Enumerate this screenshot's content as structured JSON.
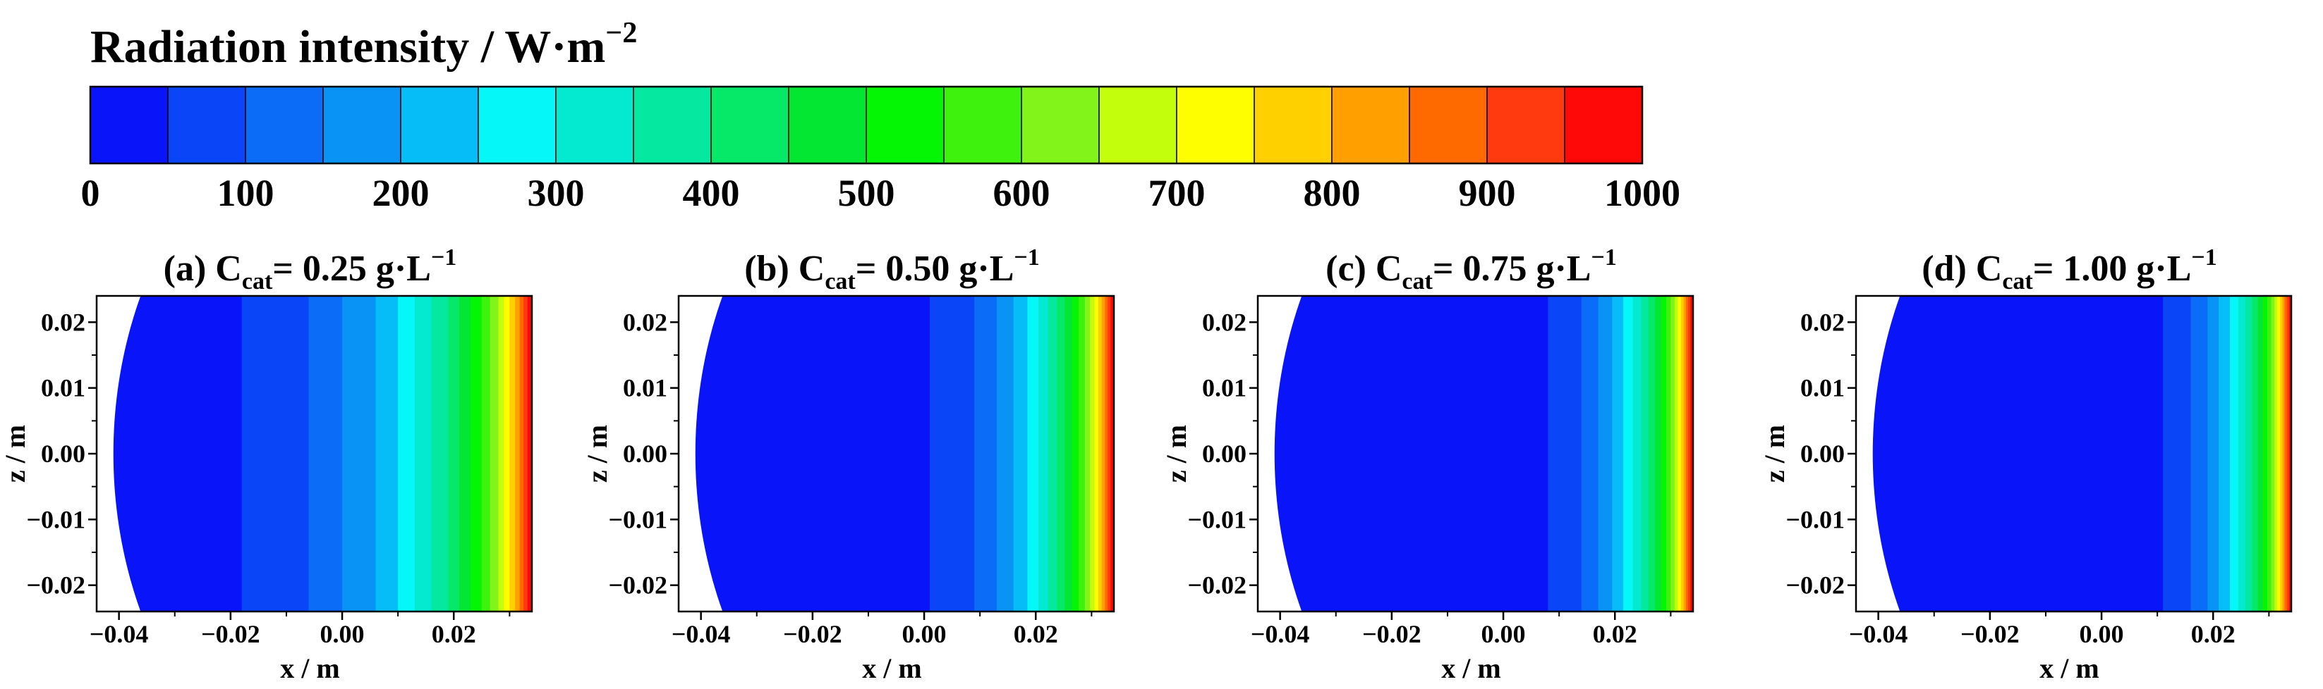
{
  "colorbar": {
    "title": "Radiation intensity / W·m",
    "title_sup": "−2",
    "ticks": [
      "0",
      "100",
      "200",
      "300",
      "400",
      "500",
      "600",
      "700",
      "800",
      "900",
      "1000"
    ],
    "colors": [
      "#0a14f8",
      "#0a46f8",
      "#0a6cf7",
      "#0893f5",
      "#06bdf8",
      "#05f7f8",
      "#03ead0",
      "#05e8a0",
      "#06e868",
      "#03e632",
      "#04f604",
      "#3ff20e",
      "#82f41a",
      "#c3fe0c",
      "#fefe00",
      "#fed000",
      "#ff9f00",
      "#ff6a00",
      "#ff3a0e",
      "#fe0808"
    ]
  },
  "chart_data": [
    {
      "type": "heatmap",
      "title": "(a) C",
      "title_sub": "cat",
      "title_rest": "= 0.25 g·L",
      "title_sup": "−1",
      "xlabel": "x / m",
      "ylabel": "z / m",
      "xticks": [
        "−0.04",
        "−0.02",
        "0.00",
        "0.02"
      ],
      "yticks": [
        "0.02",
        "0.01",
        "0.00",
        "−0.01",
        "−0.02"
      ],
      "xlim": [
        -0.044,
        0.034
      ],
      "ylim": [
        -0.024,
        0.024
      ],
      "bands": [
        {
          "x0": -0.044,
          "x1": -0.018,
          "v": 25
        },
        {
          "x0": -0.018,
          "x1": -0.006,
          "v": 75
        },
        {
          "x0": -0.006,
          "x1": 0.0,
          "v": 125
        },
        {
          "x0": 0.0,
          "x1": 0.006,
          "v": 175
        },
        {
          "x0": 0.006,
          "x1": 0.01,
          "v": 225
        },
        {
          "x0": 0.01,
          "x1": 0.013,
          "v": 275
        },
        {
          "x0": 0.013,
          "x1": 0.016,
          "v": 325
        },
        {
          "x0": 0.016,
          "x1": 0.019,
          "v": 375
        },
        {
          "x0": 0.019,
          "x1": 0.021,
          "v": 425
        },
        {
          "x0": 0.021,
          "x1": 0.023,
          "v": 475
        },
        {
          "x0": 0.023,
          "x1": 0.025,
          "v": 525
        },
        {
          "x0": 0.025,
          "x1": 0.0265,
          "v": 575
        },
        {
          "x0": 0.0265,
          "x1": 0.028,
          "v": 625
        },
        {
          "x0": 0.028,
          "x1": 0.029,
          "v": 675
        },
        {
          "x0": 0.029,
          "x1": 0.03,
          "v": 725
        },
        {
          "x0": 0.03,
          "x1": 0.031,
          "v": 775
        },
        {
          "x0": 0.031,
          "x1": 0.0318,
          "v": 825
        },
        {
          "x0": 0.0318,
          "x1": 0.0325,
          "v": 875
        },
        {
          "x0": 0.0325,
          "x1": 0.0332,
          "v": 925
        },
        {
          "x0": 0.0332,
          "x1": 0.034,
          "v": 975
        }
      ]
    },
    {
      "type": "heatmap",
      "title": "(b) C",
      "title_sub": "cat",
      "title_rest": "= 0.50 g·L",
      "title_sup": "−1",
      "xlabel": "x / m",
      "ylabel": "z / m",
      "xticks": [
        "−0.04",
        "−0.02",
        "0.00",
        "0.02"
      ],
      "yticks": [
        "0.02",
        "0.01",
        "0.00",
        "−0.01",
        "−0.02"
      ],
      "xlim": [
        -0.044,
        0.034
      ],
      "ylim": [
        -0.024,
        0.024
      ],
      "bands": [
        {
          "x0": -0.044,
          "x1": 0.001,
          "v": 25
        },
        {
          "x0": 0.001,
          "x1": 0.009,
          "v": 75
        },
        {
          "x0": 0.009,
          "x1": 0.013,
          "v": 125
        },
        {
          "x0": 0.013,
          "x1": 0.016,
          "v": 175
        },
        {
          "x0": 0.016,
          "x1": 0.0185,
          "v": 225
        },
        {
          "x0": 0.0185,
          "x1": 0.0205,
          "v": 275
        },
        {
          "x0": 0.0205,
          "x1": 0.0222,
          "v": 325
        },
        {
          "x0": 0.0222,
          "x1": 0.0238,
          "v": 375
        },
        {
          "x0": 0.0238,
          "x1": 0.0252,
          "v": 425
        },
        {
          "x0": 0.0252,
          "x1": 0.0265,
          "v": 475
        },
        {
          "x0": 0.0265,
          "x1": 0.0277,
          "v": 525
        },
        {
          "x0": 0.0277,
          "x1": 0.0288,
          "v": 575
        },
        {
          "x0": 0.0288,
          "x1": 0.0297,
          "v": 625
        },
        {
          "x0": 0.0297,
          "x1": 0.0305,
          "v": 675
        },
        {
          "x0": 0.0305,
          "x1": 0.0312,
          "v": 725
        },
        {
          "x0": 0.0312,
          "x1": 0.0318,
          "v": 775
        },
        {
          "x0": 0.0318,
          "x1": 0.0324,
          "v": 825
        },
        {
          "x0": 0.0324,
          "x1": 0.0329,
          "v": 875
        },
        {
          "x0": 0.0329,
          "x1": 0.0334,
          "v": 925
        },
        {
          "x0": 0.0334,
          "x1": 0.034,
          "v": 975
        }
      ]
    },
    {
      "type": "heatmap",
      "title": "(c) C",
      "title_sub": "cat",
      "title_rest": "= 0.75 g·L",
      "title_sup": "−1",
      "xlabel": "x / m",
      "ylabel": "z / m",
      "xticks": [
        "−0.04",
        "−0.02",
        "0.00",
        "0.02"
      ],
      "yticks": [
        "0.02",
        "0.01",
        "0.00",
        "−0.01",
        "−0.02"
      ],
      "xlim": [
        -0.044,
        0.034
      ],
      "ylim": [
        -0.024,
        0.024
      ],
      "bands": [
        {
          "x0": -0.044,
          "x1": 0.008,
          "v": 25
        },
        {
          "x0": 0.008,
          "x1": 0.014,
          "v": 75
        },
        {
          "x0": 0.014,
          "x1": 0.017,
          "v": 125
        },
        {
          "x0": 0.017,
          "x1": 0.0195,
          "v": 175
        },
        {
          "x0": 0.0195,
          "x1": 0.0215,
          "v": 225
        },
        {
          "x0": 0.0215,
          "x1": 0.0232,
          "v": 275
        },
        {
          "x0": 0.0232,
          "x1": 0.0247,
          "v": 325
        },
        {
          "x0": 0.0247,
          "x1": 0.026,
          "v": 375
        },
        {
          "x0": 0.026,
          "x1": 0.0272,
          "v": 425
        },
        {
          "x0": 0.0272,
          "x1": 0.0283,
          "v": 475
        },
        {
          "x0": 0.0283,
          "x1": 0.0292,
          "v": 525
        },
        {
          "x0": 0.0292,
          "x1": 0.03,
          "v": 575
        },
        {
          "x0": 0.03,
          "x1": 0.0307,
          "v": 625
        },
        {
          "x0": 0.0307,
          "x1": 0.0313,
          "v": 675
        },
        {
          "x0": 0.0313,
          "x1": 0.0318,
          "v": 725
        },
        {
          "x0": 0.0318,
          "x1": 0.0323,
          "v": 775
        },
        {
          "x0": 0.0323,
          "x1": 0.0327,
          "v": 825
        },
        {
          "x0": 0.0327,
          "x1": 0.0331,
          "v": 875
        },
        {
          "x0": 0.0331,
          "x1": 0.0335,
          "v": 925
        },
        {
          "x0": 0.0335,
          "x1": 0.034,
          "v": 975
        }
      ]
    },
    {
      "type": "heatmap",
      "title": "(d) C",
      "title_sub": "cat",
      "title_rest": "= 1.00 g·L",
      "title_sup": "−1",
      "xlabel": "x / m",
      "ylabel": "z / m",
      "xticks": [
        "−0.04",
        "−0.02",
        "0.00",
        "0.02"
      ],
      "yticks": [
        "0.02",
        "0.01",
        "0.00",
        "−0.01",
        "−0.02"
      ],
      "xlim": [
        -0.044,
        0.034
      ],
      "ylim": [
        -0.024,
        0.024
      ],
      "bands": [
        {
          "x0": -0.044,
          "x1": 0.011,
          "v": 25
        },
        {
          "x0": 0.011,
          "x1": 0.016,
          "v": 75
        },
        {
          "x0": 0.016,
          "x1": 0.019,
          "v": 125
        },
        {
          "x0": 0.019,
          "x1": 0.021,
          "v": 175
        },
        {
          "x0": 0.021,
          "x1": 0.023,
          "v": 225
        },
        {
          "x0": 0.023,
          "x1": 0.0245,
          "v": 275
        },
        {
          "x0": 0.0245,
          "x1": 0.0258,
          "v": 325
        },
        {
          "x0": 0.0258,
          "x1": 0.027,
          "v": 375
        },
        {
          "x0": 0.027,
          "x1": 0.028,
          "v": 425
        },
        {
          "x0": 0.028,
          "x1": 0.0289,
          "v": 475
        },
        {
          "x0": 0.0289,
          "x1": 0.0297,
          "v": 525
        },
        {
          "x0": 0.0297,
          "x1": 0.0304,
          "v": 575
        },
        {
          "x0": 0.0304,
          "x1": 0.031,
          "v": 625
        },
        {
          "x0": 0.031,
          "x1": 0.0315,
          "v": 675
        },
        {
          "x0": 0.0315,
          "x1": 0.032,
          "v": 725
        },
        {
          "x0": 0.032,
          "x1": 0.0324,
          "v": 775
        },
        {
          "x0": 0.0324,
          "x1": 0.0328,
          "v": 825
        },
        {
          "x0": 0.0328,
          "x1": 0.0332,
          "v": 875
        },
        {
          "x0": 0.0332,
          "x1": 0.0336,
          "v": 925
        },
        {
          "x0": 0.0336,
          "x1": 0.034,
          "v": 975
        }
      ]
    }
  ]
}
